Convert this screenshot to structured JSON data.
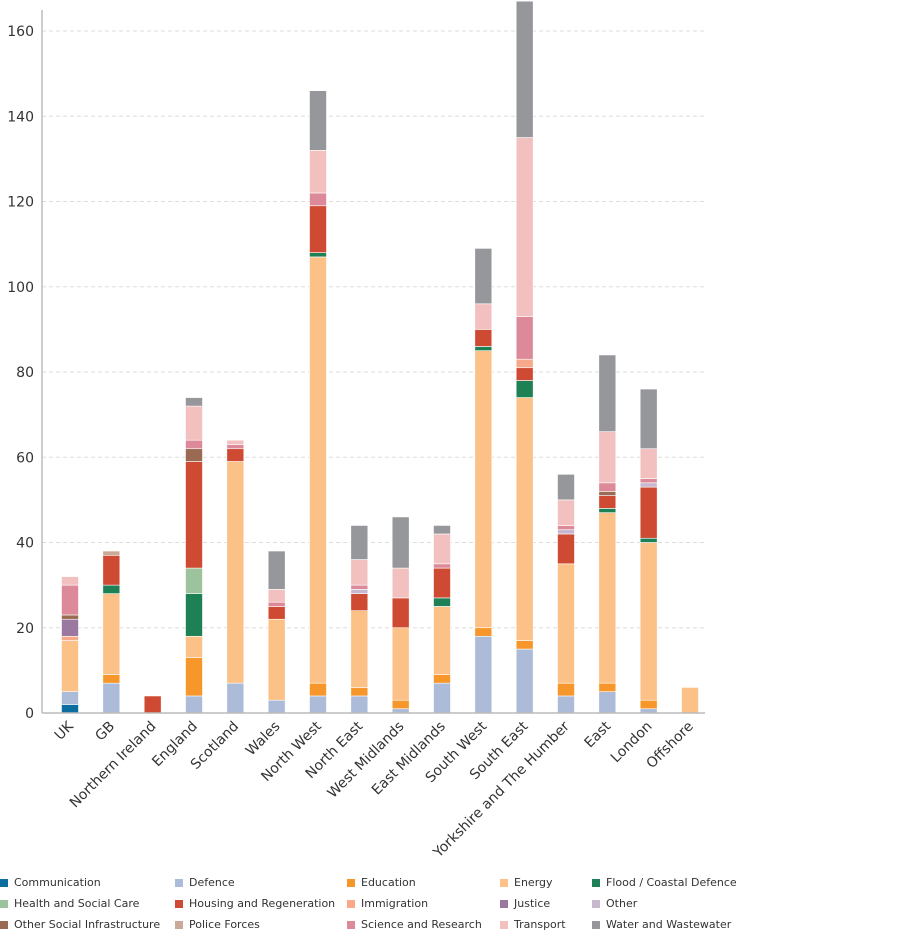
{
  "chart_data": {
    "type": "bar",
    "stacked": true,
    "title": "",
    "xlabel": "",
    "ylabel": "",
    "ylim": [
      0,
      165
    ],
    "yticks": [
      0,
      20,
      40,
      60,
      80,
      100,
      120,
      140,
      160
    ],
    "grid": true,
    "legend_position": "bottom",
    "categories": [
      "UK",
      "GB",
      "Northern Ireland",
      "England",
      "Scotland",
      "Wales",
      "North West",
      "North East",
      "West Midlands",
      "East Midlands",
      "South West",
      "South East",
      "Yorkshire and The Humber",
      "East",
      "London",
      "Offshore"
    ],
    "series": [
      {
        "name": "Communication",
        "color": "#0b6e9f",
        "values": [
          2,
          0,
          0,
          0,
          0,
          0,
          0,
          0,
          0,
          0,
          0,
          0,
          0,
          0,
          0,
          0
        ]
      },
      {
        "name": "Defence",
        "color": "#abbbd8",
        "values": [
          3,
          7,
          0,
          4,
          7,
          3,
          4,
          4,
          1,
          7,
          18,
          15,
          4,
          5,
          1,
          0
        ]
      },
      {
        "name": "Education",
        "color": "#f7962b",
        "values": [
          0,
          2,
          0,
          9,
          0,
          0,
          3,
          2,
          2,
          2,
          2,
          2,
          3,
          2,
          2,
          0
        ]
      },
      {
        "name": "Energy",
        "color": "#fcc186",
        "values": [
          12,
          19,
          0,
          5,
          52,
          19,
          100,
          18,
          17,
          16,
          65,
          57,
          28,
          40,
          37,
          6
        ]
      },
      {
        "name": "Flood / Coastal Defence",
        "color": "#1e8155",
        "values": [
          0,
          2,
          0,
          10,
          0,
          0,
          1,
          0,
          0,
          2,
          1,
          4,
          0,
          1,
          1,
          0
        ]
      },
      {
        "name": "Health and Social Care",
        "color": "#9dc39d",
        "values": [
          0,
          0,
          0,
          6,
          0,
          0,
          0,
          0,
          0,
          0,
          0,
          0,
          0,
          0,
          0,
          0
        ]
      },
      {
        "name": "Housing and Regeneration",
        "color": "#cf4a33",
        "values": [
          0,
          7,
          4,
          25,
          3,
          3,
          11,
          4,
          7,
          7,
          4,
          3,
          7,
          3,
          12,
          0
        ]
      },
      {
        "name": "Immigration",
        "color": "#f7a98a",
        "values": [
          1,
          0,
          0,
          0,
          0,
          0,
          0,
          0,
          0,
          0,
          0,
          2,
          0,
          0,
          0,
          0
        ]
      },
      {
        "name": "Justice",
        "color": "#9a78a0",
        "values": [
          4,
          0,
          0,
          0,
          0,
          0,
          0,
          0,
          0,
          0,
          0,
          0,
          0,
          0,
          0,
          0
        ]
      },
      {
        "name": "Other",
        "color": "#c7b7cf",
        "values": [
          0,
          0,
          0,
          0,
          0,
          0,
          0,
          1,
          0,
          0,
          0,
          0,
          1,
          0,
          1,
          0
        ]
      },
      {
        "name": "Other Social Infrastructure",
        "color": "#9b6a52",
        "values": [
          1,
          0,
          0,
          3,
          0,
          0,
          0,
          0,
          0,
          0,
          0,
          0,
          0,
          1,
          0,
          0
        ]
      },
      {
        "name": "Police Forces",
        "color": "#c9aa98",
        "values": [
          0,
          1,
          0,
          0,
          0,
          0,
          0,
          0,
          0,
          0,
          0,
          0,
          0,
          0,
          0,
          0
        ]
      },
      {
        "name": "Science and Research",
        "color": "#dc8a9a",
        "values": [
          7,
          0,
          0,
          2,
          1,
          1,
          3,
          1,
          0,
          1,
          0,
          10,
          1,
          2,
          1,
          0
        ]
      },
      {
        "name": "Transport",
        "color": "#f2c1bf",
        "values": [
          2,
          0,
          0,
          8,
          1,
          3,
          10,
          6,
          7,
          7,
          6,
          42,
          6,
          12,
          7,
          0
        ]
      },
      {
        "name": "Water and Wastewater",
        "color": "#96979a",
        "values": [
          0,
          0,
          0,
          2,
          0,
          9,
          14,
          8,
          12,
          2,
          13,
          32,
          6,
          18,
          14,
          0
        ]
      }
    ]
  }
}
